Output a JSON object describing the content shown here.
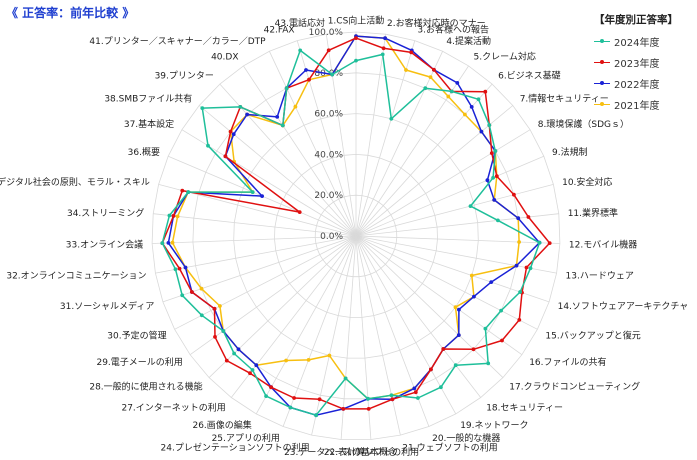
{
  "header": {
    "title": "《 正答率：前年比較 》"
  },
  "legend": {
    "title": "【年度別正答率】"
  },
  "chart_data": {
    "type": "radar",
    "title": "《 正答率：前年比較 》",
    "legend_title": "【年度別正答率】",
    "legend_position": "right",
    "rlim": [
      0,
      100
    ],
    "radial_ticks": [
      "0.0%",
      "20.0%",
      "40.0%",
      "60.0%",
      "80.0%",
      "100.0%"
    ],
    "categories": [
      "1.CS向上活動",
      "2.お客様対応時のマナー",
      "3.お客様への報告",
      "4.提案活動",
      "5.クレーム対応",
      "6.ビジネス基礎",
      "7.情報セキュリティー",
      "8.環境保護（SDGｓ）",
      "9.法規制",
      "10.安全対応",
      "11.業界標準",
      "12.モバイル機器",
      "13.ハードウェア",
      "14.ソフトウェアアーキテクチャ",
      "15.バックアップと復元",
      "16.ファイルの共有",
      "17.クラウドコンピューティング",
      "18.セキュリティー",
      "19.ネットワーク",
      "20.一般的な機器",
      "21.ウェブソフトの利用",
      "22.表計算ソフトの利用",
      "23.データベースの基本概念",
      "24.プレゼンテーションソフトの利用",
      "25.アプリの利用",
      "26.画像の編集",
      "27.インターネットの利用",
      "28.一般的に使用される機能",
      "29.電子メールの利用",
      "30.予定の管理",
      "31.ソーシャルメディア",
      "32.オンラインコミュニケーション",
      "33.オンライン会議",
      "34.ストリーミング",
      "35.デジタル社会の原則、モラル・スキル",
      "36.概要",
      "37.基本設定",
      "38.SMBファイル共有",
      "39.プリンター",
      "40.DX",
      "41.プリンター／スキャナー／カラー／DTP",
      "42.FAX",
      "43.電話応対"
    ],
    "series": [
      {
        "name": "2024年度",
        "color": "#1fbf9a",
        "values": [
          86,
          90,
          60,
          80,
          85,
          90,
          85,
          80,
          73,
          58,
          70,
          90,
          87,
          85,
          80,
          78,
          90,
          80,
          85,
          85,
          80,
          80,
          70,
          90,
          90,
          90,
          83,
          83,
          80,
          85,
          90,
          90,
          95,
          92,
          85,
          55,
          85,
          98,
          85,
          65,
          80,
          95,
          80
        ]
      },
      {
        "name": "2023年度",
        "color": "#e01010",
        "values": [
          97,
          93,
          94,
          90,
          85,
          95,
          85,
          78,
          75,
          80,
          85,
          95,
          85,
          86,
          90,
          88,
          80,
          70,
          75,
          82,
          82,
          85,
          85,
          82,
          85,
          85,
          85,
          88,
          85,
          78,
          85,
          88,
          95,
          90,
          88,
          30,
          75,
          80,
          85,
          65,
          80,
          80,
          92
        ]
      },
      {
        "name": "2022年度",
        "color": "#1a22d6",
        "values": [
          98,
          98,
          95,
          90,
          90,
          85,
          80,
          80,
          70,
          70,
          80,
          90,
          80,
          70,
          65,
          62,
          70,
          70,
          75,
          80,
          82,
          80,
          85,
          90,
          90,
          85,
          80,
          80,
          80,
          78,
          85,
          85,
          92,
          90,
          85,
          50,
          75,
          78,
          80,
          70,
          80,
          85,
          80
        ]
      },
      {
        "name": "2021年度",
        "color": "#f7bf10",
        "values": [
          98,
          98,
          85,
          86,
          82,
          80,
          80,
          80,
          75,
          70,
          80,
          80,
          80,
          60,
          65,
          60,
          70,
          70,
          75,
          80,
          80,
          80,
          70,
          60,
          65,
          70,
          80,
          80,
          80,
          75,
          80,
          85,
          90,
          88,
          85,
          55,
          70,
          80,
          80,
          65,
          70,
          80,
          80
        ]
      }
    ]
  }
}
